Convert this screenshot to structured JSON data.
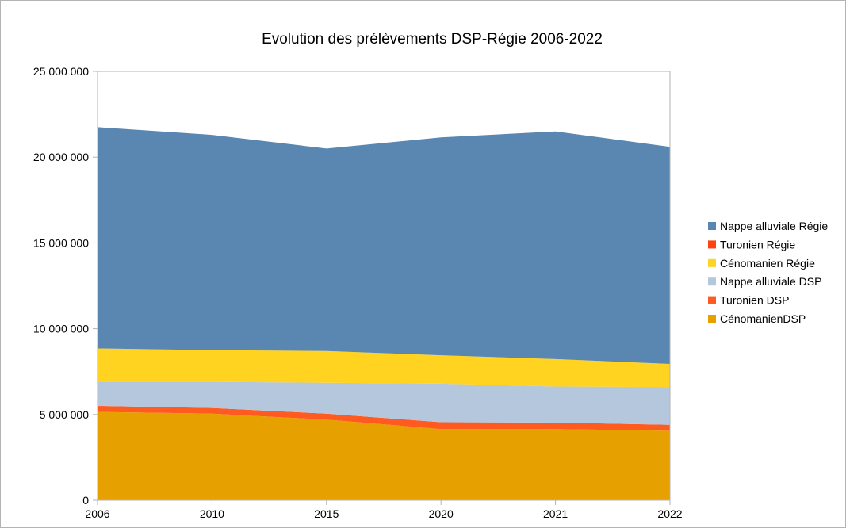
{
  "chart_data": {
    "type": "area",
    "stacked": true,
    "title": "Evolution des prélèvements DSP-Régie 2006-2022",
    "xlabel": "",
    "ylabel": "",
    "categories": [
      "2006",
      "2010",
      "2015",
      "2020",
      "2021",
      "2022"
    ],
    "ylim": [
      0,
      25000000
    ],
    "yticks": [
      0,
      5000000,
      10000000,
      15000000,
      20000000,
      25000000
    ],
    "ytick_labels": [
      "0",
      "5 000 000",
      "10 000 000",
      "15 000 000",
      "20 000 000",
      "25 000 000"
    ],
    "grid": false,
    "legend_position": "right",
    "series": [
      {
        "name": "CénomanienDSP",
        "color": "#e6a100",
        "values": [
          5150000,
          5050000,
          4700000,
          4150000,
          4150000,
          4050000
        ]
      },
      {
        "name": "Turonien DSP",
        "color": "#ff5a1f",
        "values": [
          350000,
          330000,
          350000,
          400000,
          380000,
          350000
        ]
      },
      {
        "name": "Nappe alluviale DSP",
        "color": "#b4c7dc",
        "values": [
          1400000,
          1520000,
          1800000,
          2250000,
          2100000,
          2200000
        ]
      },
      {
        "name": "Cénomanien Régie",
        "color": "#ffd320",
        "values": [
          1950000,
          1850000,
          1850000,
          1650000,
          1600000,
          1350000
        ]
      },
      {
        "name": "Turonien Régie",
        "color": "#ff420e",
        "values": [
          0,
          0,
          0,
          0,
          0,
          0
        ]
      },
      {
        "name": "Nappe alluviale Régie",
        "color": "#5a86b2",
        "values": [
          12900000,
          12550000,
          11800000,
          12700000,
          13270000,
          12650000
        ]
      }
    ],
    "legend_order": [
      "Nappe alluviale Régie",
      "Turonien Régie",
      "Cénomanien Régie",
      "Nappe alluviale DSP",
      "Turonien DSP",
      "CénomanienDSP"
    ]
  }
}
